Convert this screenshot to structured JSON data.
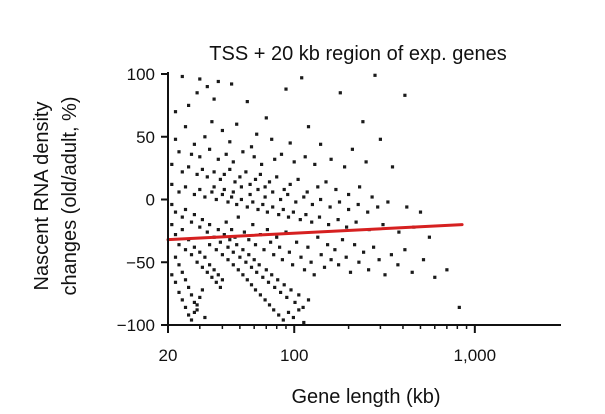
{
  "chart_data": {
    "type": "scatter",
    "title": "TSS + 20 kb region of exp. genes",
    "xlabel": "Gene length (kb)",
    "ylabel_line1": "Nascent RNA density",
    "ylabel_line2": "changes (old/adult, %)",
    "x_scale": "log",
    "xlim": [
      20,
      3000
    ],
    "ylim": [
      -100,
      100
    ],
    "x_ticks": [
      {
        "value": 20,
        "label": "20"
      },
      {
        "value": 100,
        "label": "100"
      },
      {
        "value": 1000,
        "label": "1,000"
      }
    ],
    "y_ticks": [
      {
        "value": 100,
        "label": "100"
      },
      {
        "value": 50,
        "label": "50"
      },
      {
        "value": 0,
        "label": "0"
      },
      {
        "value": -50,
        "label": "−50"
      },
      {
        "value": -100,
        "label": "−100"
      }
    ],
    "grid": false,
    "legend": "none",
    "series": [
      {
        "kind": "points",
        "color": "#1a1a1a",
        "points": [
          [
            24,
            98
          ],
          [
            30,
            96
          ],
          [
            38,
            94
          ],
          [
            33,
            90
          ],
          [
            29,
            85
          ],
          [
            45,
            92
          ],
          [
            110,
            97
          ],
          [
            280,
            99
          ],
          [
            410,
            83
          ],
          [
            22,
            70
          ],
          [
            26,
            75
          ],
          [
            36,
            80
          ],
          [
            55,
            78
          ],
          [
            90,
            88
          ],
          [
            180,
            85
          ],
          [
            35,
            62
          ],
          [
            48,
            60
          ],
          [
            70,
            65
          ],
          [
            25,
            58
          ],
          [
            40,
            55
          ],
          [
            62,
            52
          ],
          [
            120,
            58
          ],
          [
            240,
            62
          ],
          [
            22,
            48
          ],
          [
            28,
            44
          ],
          [
            32,
            50
          ],
          [
            44,
            46
          ],
          [
            58,
            42
          ],
          [
            75,
            48
          ],
          [
            95,
            45
          ],
          [
            140,
            44
          ],
          [
            210,
            40
          ],
          [
            300,
            48
          ],
          [
            23,
            38
          ],
          [
            27,
            36
          ],
          [
            30,
            34
          ],
          [
            34,
            40
          ],
          [
            38,
            32
          ],
          [
            42,
            36
          ],
          [
            46,
            30
          ],
          [
            52,
            38
          ],
          [
            60,
            34
          ],
          [
            66,
            28
          ],
          [
            78,
            32
          ],
          [
            85,
            36
          ],
          [
            100,
            30
          ],
          [
            115,
            34
          ],
          [
            130,
            28
          ],
          [
            160,
            32
          ],
          [
            190,
            26
          ],
          [
            250,
            30
          ],
          [
            350,
            26
          ],
          [
            21,
            28
          ],
          [
            24,
            22
          ],
          [
            26,
            26
          ],
          [
            29,
            20
          ],
          [
            31,
            24
          ],
          [
            33,
            18
          ],
          [
            36,
            22
          ],
          [
            39,
            16
          ],
          [
            41,
            20
          ],
          [
            44,
            24
          ],
          [
            47,
            14
          ],
          [
            50,
            18
          ],
          [
            54,
            22
          ],
          [
            57,
            12
          ],
          [
            61,
            16
          ],
          [
            65,
            20
          ],
          [
            69,
            10
          ],
          [
            73,
            14
          ],
          [
            80,
            18
          ],
          [
            88,
            8
          ],
          [
            95,
            12
          ],
          [
            105,
            16
          ],
          [
            118,
            6
          ],
          [
            135,
            10
          ],
          [
            150,
            14
          ],
          [
            170,
            8
          ],
          [
            200,
            4
          ],
          [
            230,
            10
          ],
          [
            270,
            2
          ],
          [
            330,
            -2
          ],
          [
            420,
            -6
          ],
          [
            500,
            -10
          ],
          [
            21,
            12
          ],
          [
            23,
            6
          ],
          [
            25,
            10
          ],
          [
            28,
            4
          ],
          [
            30,
            8
          ],
          [
            32,
            2
          ],
          [
            35,
            6
          ],
          [
            37,
            0
          ],
          [
            40,
            4
          ],
          [
            43,
            -2
          ],
          [
            45,
            2
          ],
          [
            48,
            -4
          ],
          [
            51,
            0
          ],
          [
            55,
            -6
          ],
          [
            59,
            -2
          ],
          [
            63,
            -8
          ],
          [
            67,
            -4
          ],
          [
            71,
            -10
          ],
          [
            76,
            -6
          ],
          [
            82,
            -12
          ],
          [
            87,
            -8
          ],
          [
            93,
            -14
          ],
          [
            99,
            -10
          ],
          [
            108,
            -16
          ],
          [
            116,
            -12
          ],
          [
            125,
            -18
          ],
          [
            138,
            -14
          ],
          [
            155,
            -20
          ],
          [
            175,
            -16
          ],
          [
            195,
            -22
          ],
          [
            220,
            -18
          ],
          [
            260,
            -24
          ],
          [
            310,
            -20
          ],
          [
            380,
            -26
          ],
          [
            460,
            -22
          ],
          [
            560,
            -30
          ],
          [
            21,
            -4
          ],
          [
            22,
            -10
          ],
          [
            24,
            -14
          ],
          [
            25,
            -8
          ],
          [
            27,
            -18
          ],
          [
            28,
            -12
          ],
          [
            30,
            -22
          ],
          [
            31,
            -16
          ],
          [
            33,
            -26
          ],
          [
            34,
            -20
          ],
          [
            36,
            -30
          ],
          [
            38,
            -24
          ],
          [
            39,
            -34
          ],
          [
            41,
            -28
          ],
          [
            43,
            -38
          ],
          [
            44,
            -32
          ],
          [
            46,
            -42
          ],
          [
            48,
            -36
          ],
          [
            50,
            -46
          ],
          [
            52,
            -40
          ],
          [
            54,
            -50
          ],
          [
            56,
            -44
          ],
          [
            58,
            -54
          ],
          [
            60,
            -48
          ],
          [
            62,
            -58
          ],
          [
            64,
            -52
          ],
          [
            67,
            -62
          ],
          [
            70,
            -56
          ],
          [
            72,
            -66
          ],
          [
            75,
            -60
          ],
          [
            78,
            -70
          ],
          [
            81,
            -64
          ],
          [
            84,
            -74
          ],
          [
            88,
            -68
          ],
          [
            91,
            -78
          ],
          [
            96,
            -72
          ],
          [
            101,
            -82
          ],
          [
            106,
            -76
          ],
          [
            112,
            -86
          ],
          [
            120,
            -80
          ],
          [
            21,
            -20
          ],
          [
            22,
            -28
          ],
          [
            23,
            -36
          ],
          [
            24,
            -24
          ],
          [
            25,
            -40
          ],
          [
            26,
            -32
          ],
          [
            27,
            -44
          ],
          [
            28,
            -38
          ],
          [
            29,
            -50
          ],
          [
            30,
            -42
          ],
          [
            31,
            -54
          ],
          [
            32,
            -46
          ],
          [
            33,
            -58
          ],
          [
            34,
            -52
          ],
          [
            35,
            -62
          ],
          [
            36,
            -56
          ],
          [
            37,
            -66
          ],
          [
            38,
            -60
          ],
          [
            39,
            -70
          ],
          [
            40,
            -64
          ],
          [
            22,
            -46
          ],
          [
            23,
            -52
          ],
          [
            24,
            -58
          ],
          [
            25,
            -64
          ],
          [
            26,
            -70
          ],
          [
            27,
            -76
          ],
          [
            28,
            -82
          ],
          [
            29,
            -88
          ],
          [
            30,
            -78
          ],
          [
            31,
            -72
          ],
          [
            21,
            -60
          ],
          [
            22,
            -66
          ],
          [
            23,
            -74
          ],
          [
            24,
            -80
          ],
          [
            25,
            -86
          ],
          [
            26,
            -92
          ],
          [
            27,
            -96
          ],
          [
            28,
            -90
          ],
          [
            29,
            -84
          ],
          [
            32,
            -94
          ],
          [
            42,
            -18
          ],
          [
            45,
            -24
          ],
          [
            47,
            -30
          ],
          [
            49,
            -14
          ],
          [
            53,
            -26
          ],
          [
            56,
            -32
          ],
          [
            59,
            -20
          ],
          [
            61,
            -36
          ],
          [
            65,
            -28
          ],
          [
            68,
            -40
          ],
          [
            71,
            -24
          ],
          [
            74,
            -34
          ],
          [
            77,
            -44
          ],
          [
            80,
            -30
          ],
          [
            83,
            -38
          ],
          [
            86,
            -48
          ],
          [
            90,
            -26
          ],
          [
            94,
            -42
          ],
          [
            98,
            -52
          ],
          [
            103,
            -34
          ],
          [
            109,
            -46
          ],
          [
            114,
            -56
          ],
          [
            119,
            -38
          ],
          [
            124,
            -50
          ],
          [
            129,
            -60
          ],
          [
            135,
            -30
          ],
          [
            141,
            -44
          ],
          [
            147,
            -54
          ],
          [
            153,
            -36
          ],
          [
            160,
            -48
          ],
          [
            168,
            -40
          ],
          [
            176,
            -52
          ],
          [
            185,
            -32
          ],
          [
            194,
            -46
          ],
          [
            205,
            -58
          ],
          [
            216,
            -36
          ],
          [
            228,
            -50
          ],
          [
            242,
            -42
          ],
          [
            258,
            -56
          ],
          [
            275,
            -38
          ],
          [
            295,
            -48
          ],
          [
            318,
            -60
          ],
          [
            345,
            -44
          ],
          [
            375,
            -52
          ],
          [
            410,
            -40
          ],
          [
            450,
            -58
          ],
          [
            520,
            -48
          ],
          [
            600,
            -62
          ],
          [
            700,
            -56
          ],
          [
            820,
            -86
          ],
          [
            36,
            10
          ],
          [
            41,
            8
          ],
          [
            46,
            6
          ],
          [
            51,
            10
          ],
          [
            57,
            4
          ],
          [
            63,
            8
          ],
          [
            69,
            2
          ],
          [
            76,
            6
          ],
          [
            84,
            0
          ],
          [
            92,
            4
          ],
          [
            102,
            -2
          ],
          [
            113,
            2
          ],
          [
            126,
            -4
          ],
          [
            140,
            0
          ],
          [
            158,
            -6
          ],
          [
            178,
            -2
          ],
          [
            200,
            -8
          ],
          [
            226,
            -4
          ],
          [
            255,
            -10
          ],
          [
            290,
            -6
          ],
          [
            34,
            -36
          ],
          [
            37,
            -40
          ],
          [
            40,
            -44
          ],
          [
            43,
            -48
          ],
          [
            46,
            -52
          ],
          [
            49,
            -56
          ],
          [
            52,
            -60
          ],
          [
            55,
            -64
          ],
          [
            58,
            -68
          ],
          [
            61,
            -72
          ],
          [
            65,
            -76
          ],
          [
            69,
            -80
          ],
          [
            73,
            -84
          ],
          [
            77,
            -88
          ],
          [
            82,
            -92
          ],
          [
            87,
            -96
          ],
          [
            93,
            -90
          ],
          [
            99,
            -94
          ],
          [
            106,
            -88
          ],
          [
            113,
            -98
          ]
        ]
      },
      {
        "kind": "trendline",
        "color": "#d62020",
        "points": [
          [
            20,
            -32
          ],
          [
            850,
            -20
          ]
        ]
      }
    ]
  }
}
